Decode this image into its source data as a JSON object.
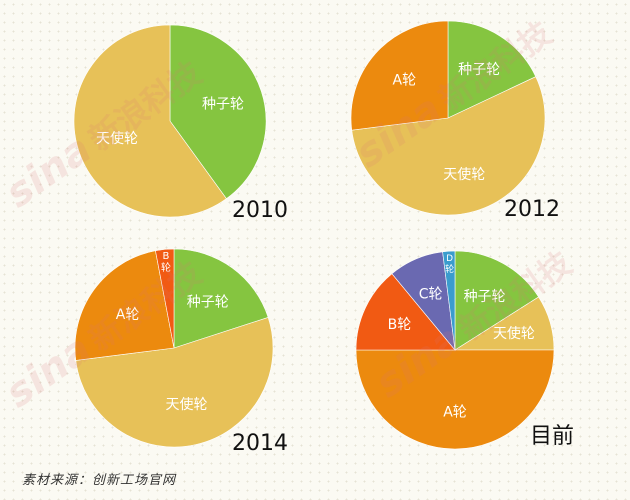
{
  "chart_data": [
    {
      "type": "pie",
      "label": "2010",
      "slices": [
        {
          "name": "种子轮",
          "value": 40,
          "color": "#85c540"
        },
        {
          "name": "天使轮",
          "value": 60,
          "color": "#e7c158"
        }
      ]
    },
    {
      "type": "pie",
      "label": "2012",
      "slices": [
        {
          "name": "种子轮",
          "value": 18,
          "color": "#85c540"
        },
        {
          "name": "天使轮",
          "value": 55,
          "color": "#e7c158"
        },
        {
          "name": "A轮",
          "value": 27,
          "color": "#ec8a0e"
        }
      ]
    },
    {
      "type": "pie",
      "label": "2014",
      "slices": [
        {
          "name": "种子轮",
          "value": 20,
          "color": "#85c540"
        },
        {
          "name": "天使轮",
          "value": 53,
          "color": "#e7c158"
        },
        {
          "name": "A轮",
          "value": 24,
          "color": "#ec8a0e"
        },
        {
          "name": "B轮",
          "value": 3,
          "color": "#f15a13"
        }
      ]
    },
    {
      "type": "pie",
      "label": "目前",
      "slices": [
        {
          "name": "种子轮",
          "value": 16,
          "color": "#85c540"
        },
        {
          "name": "天使轮",
          "value": 9,
          "color": "#e7c158"
        },
        {
          "name": "A轮",
          "value": 50,
          "color": "#ec8a0e"
        },
        {
          "name": "B轮",
          "value": 14,
          "color": "#f15a13"
        },
        {
          "name": "C轮",
          "value": 9,
          "color": "#6a69b1"
        },
        {
          "name": "D轮",
          "value": 2,
          "color": "#3b9ccd"
        }
      ]
    }
  ],
  "source": "素材来源：创新工场官网",
  "watermark": {
    "logo": "sina",
    "text": "新浪科技"
  }
}
